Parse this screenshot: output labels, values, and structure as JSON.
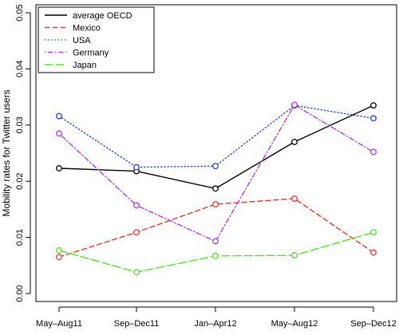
{
  "chart_data": {
    "type": "line",
    "title": "",
    "xlabel": "",
    "ylabel": "Mobility rates for Twitter users",
    "categories": [
      "May–Aug11",
      "Sep–Dec11",
      "Jan–Apr12",
      "May–Aug12",
      "Sep–Dec12"
    ],
    "ylim": [
      0.0,
      0.05
    ],
    "yticks": [
      "0.00",
      "0.01",
      "0.02",
      "0.03",
      "0.04",
      "0.05"
    ],
    "grid": false,
    "legend_position": "top-left",
    "series": [
      {
        "name": "average OECD",
        "color": "#000000",
        "dash": "solid",
        "values": [
          0.0223,
          0.0218,
          0.0187,
          0.027,
          0.0335
        ]
      },
      {
        "name": "Mexico",
        "color": "#e5352c",
        "dash": "dashed",
        "values": [
          0.0065,
          0.0109,
          0.0159,
          0.0169,
          0.0073
        ]
      },
      {
        "name": "USA",
        "color": "#2b3ee0",
        "dash": "dotted",
        "values": [
          0.0316,
          0.0225,
          0.0227,
          0.0335,
          0.0312
        ]
      },
      {
        "name": "Germany",
        "color": "#b23be0",
        "dash": "dotdash",
        "values": [
          0.0285,
          0.0157,
          0.0093,
          0.0336,
          0.0252
        ]
      },
      {
        "name": "Japan",
        "color": "#55dd2a",
        "dash": "longdash",
        "values": [
          0.0077,
          0.0038,
          0.0067,
          0.0068,
          0.0109
        ]
      }
    ]
  }
}
